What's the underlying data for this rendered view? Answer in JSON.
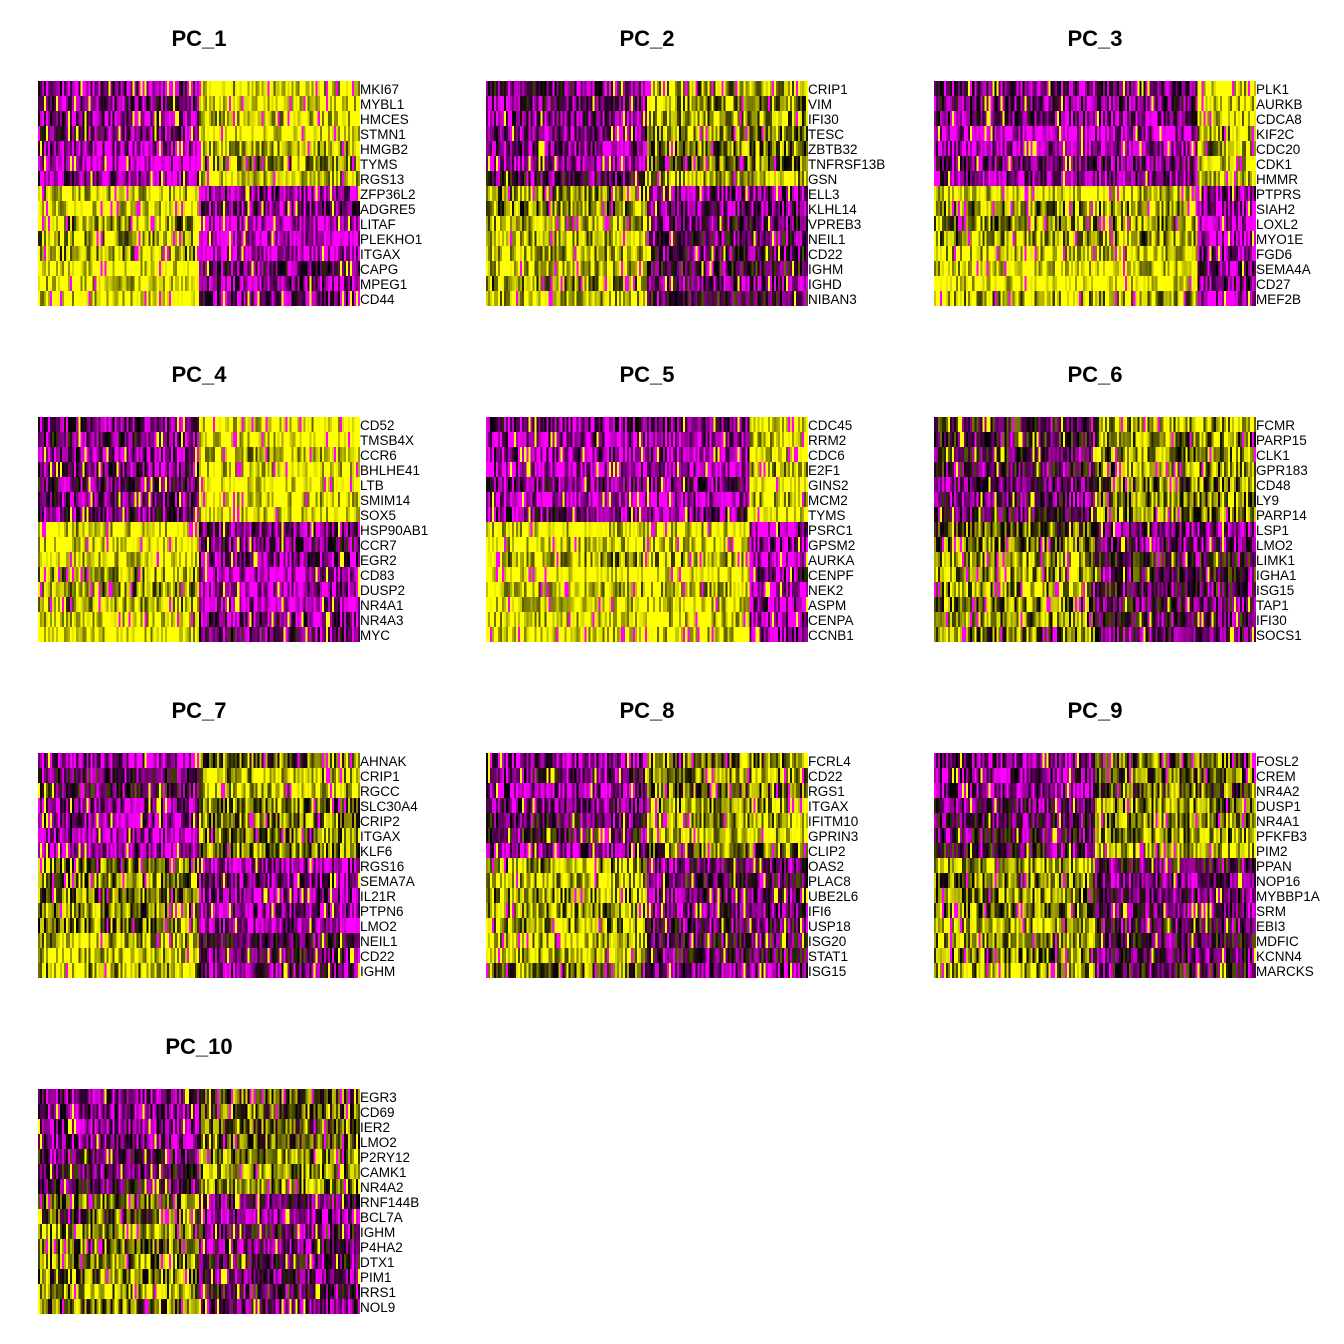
{
  "chart_data": [
    {
      "type": "heatmap",
      "title": "PC_1",
      "positive_genes": [
        "MKI67",
        "MYBL1",
        "HMCES",
        "STMN1",
        "HMGB2",
        "TYMS",
        "RGS13"
      ],
      "negative_genes": [
        "ZFP36L2",
        "ADGRE5",
        "LITAF",
        "PLEKHO1",
        "ITGAX",
        "CAPG",
        "MPEG1",
        "CD44"
      ],
      "high_block": "right",
      "split_fraction": 0.5,
      "strength": 0.85
    },
    {
      "type": "heatmap",
      "title": "PC_2",
      "positive_genes": [
        "CRIP1",
        "VIM",
        "IFI30",
        "TESC",
        "ZBTB32",
        "TNFRSF13B",
        "GSN"
      ],
      "negative_genes": [
        "ELL3",
        "KLHL14",
        "VPREB3",
        "NEIL1",
        "CD22",
        "IGHM",
        "IGHD",
        "NIBAN3"
      ],
      "high_block": "right",
      "split_fraction": 0.5,
      "strength": 0.6
    },
    {
      "type": "heatmap",
      "title": "PC_3",
      "positive_genes": [
        "PLK1",
        "AURKB",
        "CDCA8",
        "KIF2C",
        "CDC20",
        "CDK1",
        "HMMR"
      ],
      "negative_genes": [
        "PTPRS",
        "SIAH2",
        "LOXL2",
        "MYO1E",
        "FGD6",
        "SEMA4A",
        "CD27",
        "MEF2B"
      ],
      "high_block": "right",
      "split_fraction": 0.82,
      "strength": 0.8
    },
    {
      "type": "heatmap",
      "title": "PC_4",
      "positive_genes": [
        "CD52",
        "TMSB4X",
        "CCR6",
        "BHLHE41",
        "LTB",
        "SMIM14",
        "SOX5"
      ],
      "negative_genes": [
        "HSP90AB1",
        "CCR7",
        "EGR2",
        "CD83",
        "DUSP2",
        "NR4A1",
        "NR4A3",
        "MYC"
      ],
      "high_block": "right",
      "split_fraction": 0.5,
      "strength": 0.8
    },
    {
      "type": "heatmap",
      "title": "PC_5",
      "positive_genes": [
        "CDC45",
        "RRM2",
        "CDC6",
        "E2F1",
        "GINS2",
        "MCM2",
        "TYMS"
      ],
      "negative_genes": [
        "PSRC1",
        "GPSM2",
        "AURKA",
        "CENPF",
        "NEK2",
        "ASPM",
        "CENPA",
        "CCNB1"
      ],
      "high_block": "right",
      "split_fraction": 0.82,
      "strength": 0.9
    },
    {
      "type": "heatmap",
      "title": "PC_6",
      "positive_genes": [
        "FCMR",
        "PARP15",
        "CLK1",
        "GPR183",
        "CD48",
        "LY9",
        "PARP14"
      ],
      "negative_genes": [
        "LSP1",
        "LMO2",
        "LIMK1",
        "IGHA1",
        "ISG15",
        "TAP1",
        "IFI30",
        "SOCS1"
      ],
      "high_block": "right",
      "split_fraction": 0.5,
      "strength": 0.45
    },
    {
      "type": "heatmap",
      "title": "PC_7",
      "positive_genes": [
        "AHNAK",
        "CRIP1",
        "RGCC",
        "SLC30A4",
        "CRIP2",
        "ITGAX",
        "KLF6"
      ],
      "negative_genes": [
        "RGS16",
        "SEMA7A",
        "IL21R",
        "PTPN6",
        "LMO2",
        "NEIL1",
        "CD22",
        "IGHM"
      ],
      "high_block": "right",
      "split_fraction": 0.5,
      "strength": 0.6
    },
    {
      "type": "heatmap",
      "title": "PC_8",
      "positive_genes": [
        "FCRL4",
        "CD22",
        "RGS1",
        "ITGAX",
        "IFITM10",
        "GPRIN3",
        "CLIP2"
      ],
      "negative_genes": [
        "OAS2",
        "PLAC8",
        "UBE2L6",
        "IFI6",
        "USP18",
        "ISG20",
        "STAT1",
        "ISG15"
      ],
      "high_block": "right",
      "split_fraction": 0.5,
      "strength": 0.55
    },
    {
      "type": "heatmap",
      "title": "PC_9",
      "positive_genes": [
        "FOSL2",
        "CREM",
        "NR4A2",
        "DUSP1",
        "NR4A1",
        "PFKFB3",
        "PIM2"
      ],
      "negative_genes": [
        "PPAN",
        "NOP16",
        "MYBBP1A",
        "SRM",
        "EBI3",
        "MDFIC",
        "KCNN4",
        "MARCKS"
      ],
      "high_block": "right",
      "split_fraction": 0.5,
      "strength": 0.5
    },
    {
      "type": "heatmap",
      "title": "PC_10",
      "positive_genes": [
        "EGR3",
        "CD69",
        "IER2",
        "LMO2",
        "P2RY12",
        "CAMK1",
        "NR4A2"
      ],
      "negative_genes": [
        "RNF144B",
        "BCL7A",
        "IGHM",
        "P4HA2",
        "DTX1",
        "PIM1",
        "RRS1",
        "NOL9"
      ],
      "high_block": "right",
      "split_fraction": 0.5,
      "strength": 0.45
    }
  ],
  "colors": {
    "low": "#ff00ff",
    "mid": "#000000",
    "high": "#ffff00"
  }
}
